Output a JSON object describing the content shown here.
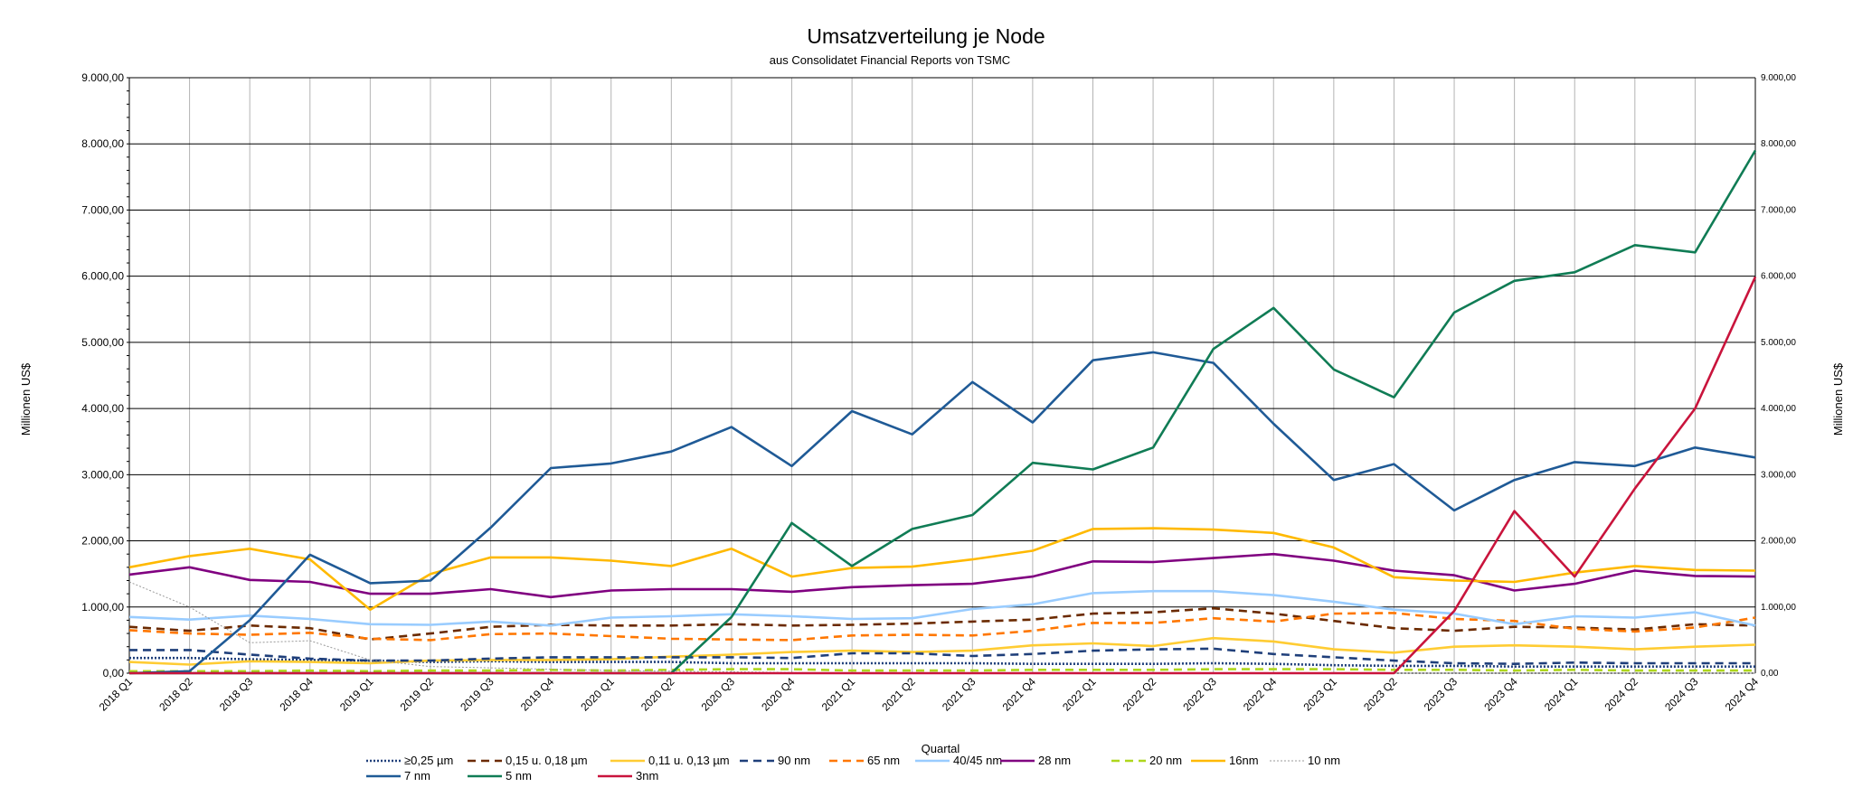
{
  "chart_data": {
    "type": "line",
    "title": "Umsatzverteilung je Node",
    "subtitle": "aus Consolidatet Financial Reports von TSMC",
    "xlabel": "Quartal",
    "ylabel": "Millionen US$",
    "ylabel_right": "Millionen US$",
    "ylim": [
      0,
      9000
    ],
    "y_ticks": [
      0,
      1000,
      2000,
      3000,
      4000,
      5000,
      6000,
      7000,
      8000,
      9000
    ],
    "y_tick_labels": [
      "0,00",
      "1.000,00",
      "2.000,00",
      "3.000,00",
      "4.000,00",
      "5.000,00",
      "6.000,00",
      "7.000,00",
      "8.000,00",
      "9.000,00"
    ],
    "categories": [
      "2018 Q1",
      "2018 Q2",
      "2018 Q3",
      "2018 Q4",
      "2019 Q1",
      "2019 Q2",
      "2019 Q3",
      "2019 Q4",
      "2020 Q1",
      "2020 Q2",
      "2020 Q3",
      "2020 Q4",
      "2021 Q1",
      "2021 Q2",
      "2021 Q3",
      "2021 Q4",
      "2022 Q1",
      "2022 Q2",
      "2022 Q3",
      "2022 Q4",
      "2023 Q1",
      "2023 Q2",
      "2023 Q3",
      "2023 Q4",
      "2024 Q1",
      "2024 Q2",
      "2024 Q3",
      "2024 Q4"
    ],
    "grid": true,
    "legend_position": "bottom-center",
    "series": [
      {
        "name": "≥0,25 µm",
        "color": "#1f3f7a",
        "dash": "dotted",
        "values": [
          230,
          230,
          210,
          200,
          190,
          170,
          180,
          170,
          170,
          170,
          150,
          150,
          150,
          150,
          150,
          140,
          140,
          140,
          150,
          140,
          120,
          110,
          110,
          100,
          100,
          100,
          100,
          100
        ]
      },
      {
        "name": "0,15 u. 0,18 µm",
        "color": "#6b2a00",
        "dash": "dashed",
        "values": [
          700,
          640,
          720,
          680,
          510,
          600,
          700,
          730,
          720,
          720,
          740,
          720,
          730,
          750,
          780,
          810,
          900,
          920,
          980,
          900,
          790,
          680,
          640,
          700,
          690,
          660,
          740,
          720
        ]
      },
      {
        "name": "0,11 u. 0,13 µm",
        "color": "#ffcc33",
        "dash": "solid",
        "values": [
          170,
          130,
          180,
          170,
          150,
          190,
          200,
          200,
          210,
          250,
          280,
          320,
          340,
          320,
          340,
          420,
          450,
          410,
          530,
          480,
          360,
          310,
          400,
          420,
          400,
          360,
          400,
          430
        ]
      },
      {
        "name": "90 nm",
        "color": "#1f3f7a",
        "dash": "dashed",
        "values": [
          350,
          350,
          280,
          220,
          190,
          190,
          220,
          240,
          240,
          240,
          240,
          230,
          300,
          300,
          260,
          290,
          340,
          360,
          370,
          290,
          240,
          190,
          150,
          140,
          160,
          150,
          150,
          150
        ]
      },
      {
        "name": "65 nm",
        "color": "#ff7700",
        "dash": "dashed",
        "values": [
          650,
          600,
          580,
          610,
          520,
          500,
          590,
          600,
          560,
          520,
          510,
          500,
          570,
          580,
          570,
          640,
          760,
          760,
          830,
          780,
          900,
          910,
          820,
          790,
          670,
          630,
          690,
          840
        ]
      },
      {
        "name": "40/45 nm",
        "color": "#99ccff",
        "dash": "solid",
        "values": [
          850,
          810,
          870,
          820,
          740,
          730,
          780,
          720,
          840,
          860,
          890,
          860,
          820,
          830,
          970,
          1040,
          1210,
          1240,
          1240,
          1180,
          1080,
          960,
          900,
          740,
          860,
          840,
          920,
          720
        ]
      },
      {
        "name": "28 nm",
        "color": "#800080",
        "dash": "solid",
        "values": [
          1490,
          1600,
          1410,
          1380,
          1200,
          1200,
          1270,
          1150,
          1250,
          1270,
          1270,
          1230,
          1300,
          1330,
          1350,
          1460,
          1690,
          1680,
          1740,
          1800,
          1700,
          1550,
          1480,
          1250,
          1350,
          1550,
          1470,
          1460
        ]
      },
      {
        "name": "20 nm",
        "color": "#aed61c",
        "dash": "dashed",
        "values": [
          30,
          30,
          30,
          40,
          30,
          40,
          40,
          50,
          40,
          50,
          60,
          60,
          40,
          40,
          40,
          50,
          50,
          50,
          60,
          60,
          60,
          50,
          50,
          40,
          50,
          40,
          40,
          40
        ]
      },
      {
        "name": "16nm",
        "color": "#ffb900",
        "dash": "solid",
        "values": [
          1600,
          1770,
          1880,
          1720,
          960,
          1500,
          1750,
          1750,
          1700,
          1620,
          1880,
          1460,
          1590,
          1610,
          1720,
          1850,
          2180,
          2190,
          2170,
          2120,
          1900,
          1450,
          1400,
          1380,
          1520,
          1620,
          1560,
          1550
        ]
      },
      {
        "name": "10 nm",
        "color": "#999999",
        "dash": "dotted",
        "values": [
          1380,
          1000,
          460,
          490,
          200,
          100,
          80,
          60,
          40,
          30,
          20,
          10,
          0,
          0,
          0,
          0,
          0,
          0,
          0,
          0,
          0,
          0,
          0,
          0,
          0,
          0,
          0,
          0
        ]
      },
      {
        "name": "7 nm",
        "color": "#1f5a96",
        "dash": "solid",
        "values": [
          0,
          30,
          800,
          1790,
          1360,
          1400,
          2200,
          3100,
          3170,
          3350,
          3720,
          3130,
          3960,
          3610,
          4400,
          3790,
          4730,
          4850,
          4690,
          3770,
          2920,
          3160,
          2460,
          2920,
          3190,
          3130,
          3410,
          3260
        ]
      },
      {
        "name": "5 nm",
        "color": "#107c55",
        "dash": "solid",
        "values": [
          0,
          0,
          0,
          0,
          0,
          0,
          0,
          0,
          0,
          0,
          850,
          2270,
          1620,
          2180,
          2390,
          3180,
          3080,
          3410,
          4900,
          5520,
          4590,
          4170,
          5450,
          5930,
          6060,
          6470,
          6360,
          7900
        ]
      },
      {
        "name": "3nm",
        "color": "#c9143c",
        "dash": "solid",
        "values": [
          0,
          0,
          0,
          0,
          0,
          0,
          0,
          0,
          0,
          0,
          0,
          0,
          0,
          0,
          0,
          0,
          0,
          0,
          0,
          0,
          0,
          0,
          940,
          2450,
          1460,
          2790,
          4000,
          5990
        ]
      }
    ]
  }
}
